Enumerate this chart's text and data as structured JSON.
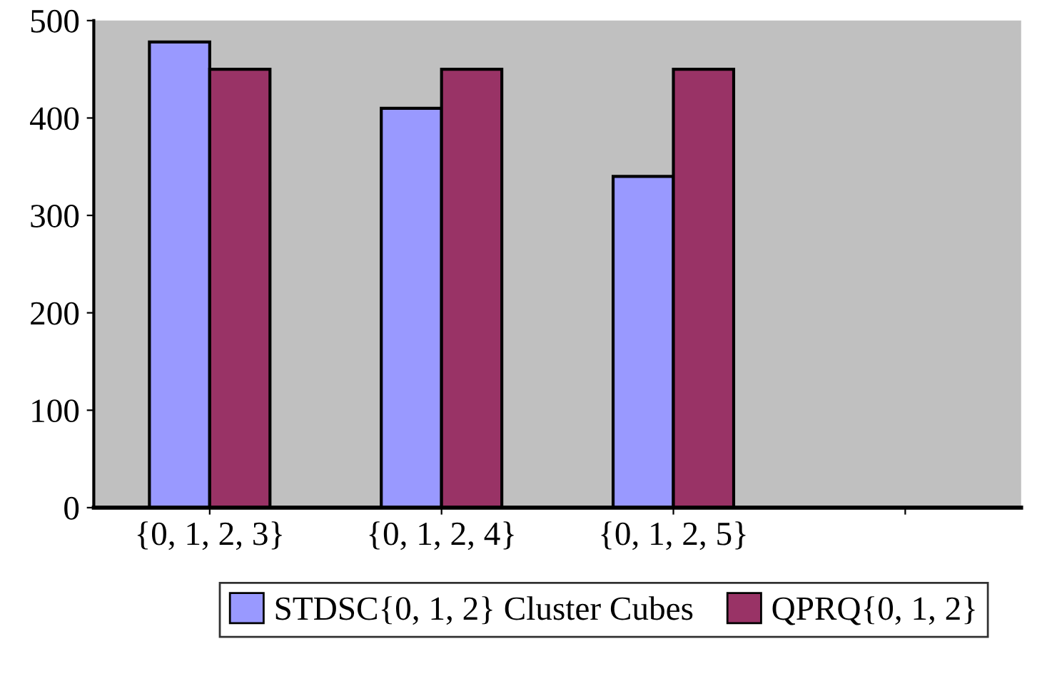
{
  "chart_data": {
    "type": "bar",
    "categories": [
      "{0, 1, 2, 3}",
      "{0, 1, 2, 4}",
      "{0, 1, 2, 5}",
      null
    ],
    "series": [
      {
        "name": "STDSC{0, 1, 2} Cluster Cubes",
        "color": "#9999ff",
        "values": [
          478,
          410,
          340,
          null
        ]
      },
      {
        "name": "QPRQ{0, 1, 2}",
        "color": "#993366",
        "values": [
          450,
          450,
          450,
          null
        ]
      }
    ],
    "ylim": [
      0,
      500
    ],
    "yticks": [
      0,
      100,
      200,
      300,
      400,
      500
    ],
    "grid": false,
    "legend": "bottom"
  }
}
